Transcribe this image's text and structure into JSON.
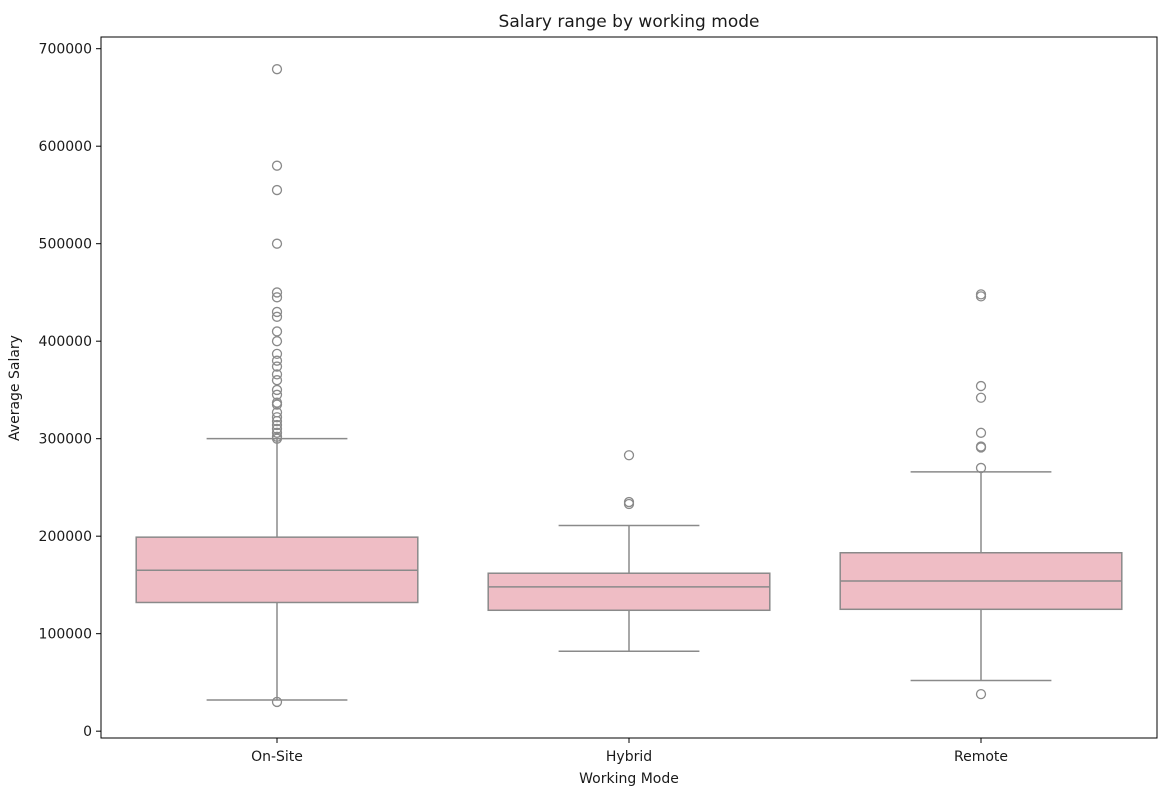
{
  "chart_data": {
    "type": "box",
    "title": "Salary range by working mode",
    "xlabel": "Working Mode",
    "ylabel": "Average Salary",
    "ylim": [
      -7000,
      712000
    ],
    "yticks": [
      0,
      100000,
      200000,
      300000,
      400000,
      500000,
      600000,
      700000
    ],
    "ytick_labels": [
      "0",
      "100000",
      "200000",
      "300000",
      "400000",
      "500000",
      "600000",
      "700000"
    ],
    "categories": [
      "On-Site",
      "Hybrid",
      "Remote"
    ],
    "boxes": [
      {
        "category": "On-Site",
        "whisker_low": 32000,
        "q1": 132000,
        "median": 165000,
        "q3": 199000,
        "whisker_high": 300000,
        "outliers": [
          30000,
          679000,
          580000,
          555000,
          500000,
          450000,
          445000,
          430000,
          425000,
          410000,
          400000,
          387000,
          380000,
          374000,
          366000,
          360000,
          350000,
          345000,
          337000,
          335000,
          327000,
          322000,
          318000,
          314000,
          310000,
          306000,
          302000,
          300000
        ]
      },
      {
        "category": "Hybrid",
        "whisker_low": 82000,
        "q1": 124000,
        "median": 148000,
        "q3": 162000,
        "whisker_high": 211000,
        "outliers": [
          283000,
          235000,
          233000
        ]
      },
      {
        "category": "Remote",
        "whisker_low": 52000,
        "q1": 125000,
        "median": 154000,
        "q3": 183000,
        "whisker_high": 266000,
        "outliers": [
          38000,
          448000,
          446000,
          354000,
          342000,
          306000,
          292000,
          291000,
          270000
        ]
      }
    ],
    "colors": {
      "box_fill": "#efbdc5",
      "line": "#8a8a8a",
      "axis": "#000000"
    },
    "grid": false
  }
}
